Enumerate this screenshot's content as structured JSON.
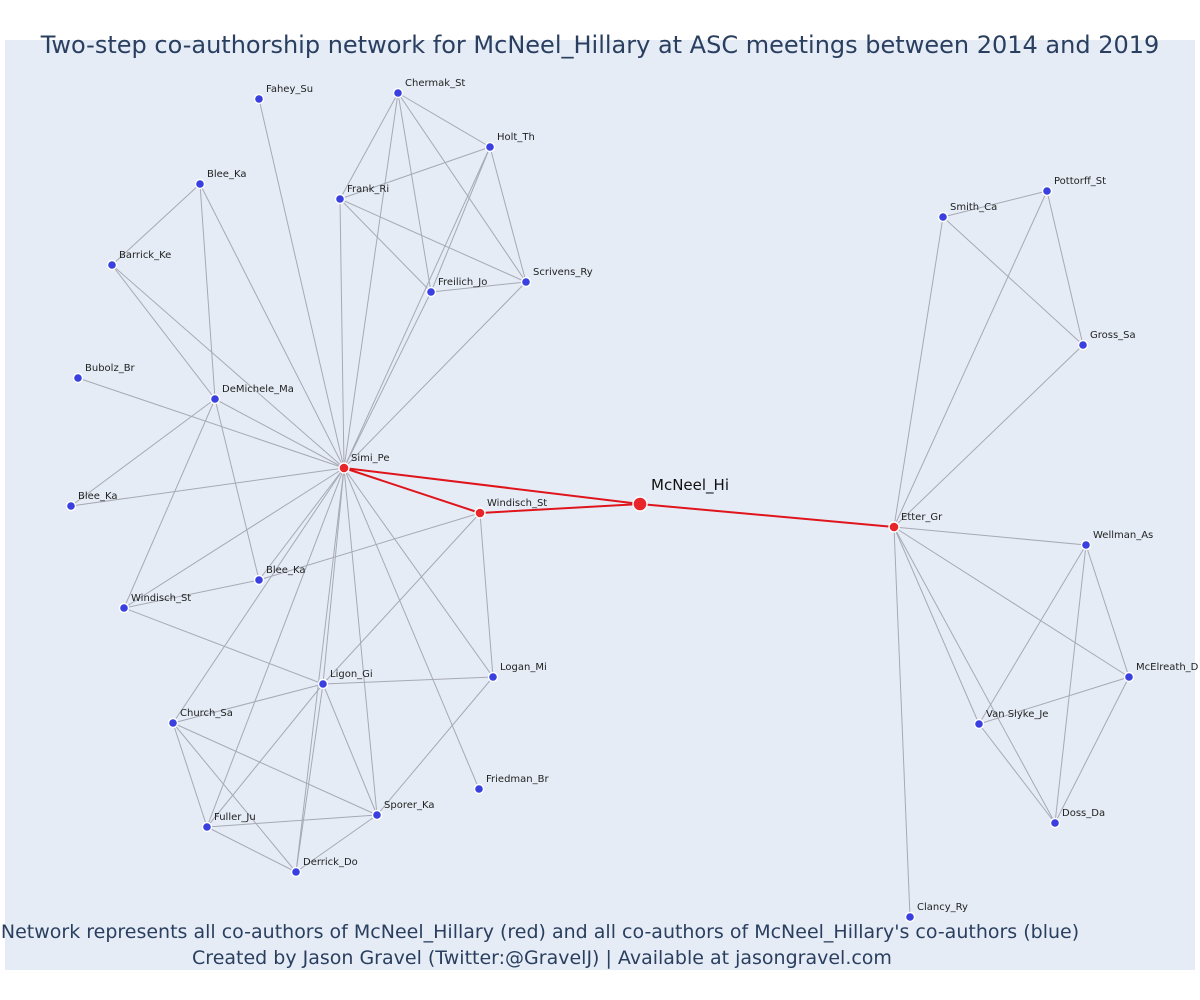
{
  "title": "Two-step co-authorship network for McNeel_Hillary at ASC meetings between 2014 and 2019",
  "caption": {
    "line1": "Network represents all co-authors of McNeel_Hillary (red) and all co-authors of McNeel_Hillary's co-authors (blue)",
    "line2": "Created by Jason Gravel (Twitter:@GravelJ) | Available at jasongravel.com"
  },
  "colors": {
    "background": "#e5ecf6",
    "edge": "#a7a9b4",
    "ego_edge": "#e0141b",
    "first_degree": "#e8262a",
    "second_degree": "#3a3fe0",
    "title": "#2a3f5f"
  },
  "nodes": [
    {
      "id": "mcneel",
      "label": "McNeel_Hi",
      "group": "focal"
    },
    {
      "id": "simi",
      "label": "Simi_Pe",
      "group": "first"
    },
    {
      "id": "windisch1",
      "label": "Windisch_St",
      "group": "first"
    },
    {
      "id": "etter",
      "label": "Etter_Gr",
      "group": "first"
    },
    {
      "id": "fahey",
      "label": "Fahey_Su",
      "group": "second"
    },
    {
      "id": "chermak",
      "label": "Chermak_St",
      "group": "second"
    },
    {
      "id": "holt",
      "label": "Holt_Th",
      "group": "second"
    },
    {
      "id": "blee1",
      "label": "Blee_Ka",
      "group": "second"
    },
    {
      "id": "frank",
      "label": "Frank_Ri",
      "group": "second"
    },
    {
      "id": "barrick",
      "label": "Barrick_Ke",
      "group": "second"
    },
    {
      "id": "freilich",
      "label": "Freilich_Jo",
      "group": "second"
    },
    {
      "id": "scrivens",
      "label": "Scrivens_Ry",
      "group": "second"
    },
    {
      "id": "bubolz",
      "label": "Bubolz_Br",
      "group": "second"
    },
    {
      "id": "demichele",
      "label": "DeMichele_Ma",
      "group": "second"
    },
    {
      "id": "blee2",
      "label": "Blee_Ka",
      "group": "second"
    },
    {
      "id": "blee3",
      "label": "Blee_Ka",
      "group": "second"
    },
    {
      "id": "windisch2",
      "label": "Windisch_St",
      "group": "second"
    },
    {
      "id": "ligon",
      "label": "Ligon_Gi",
      "group": "second"
    },
    {
      "id": "logan",
      "label": "Logan_Mi",
      "group": "second"
    },
    {
      "id": "church",
      "label": "Church_Sa",
      "group": "second"
    },
    {
      "id": "friedman",
      "label": "Friedman_Br",
      "group": "second"
    },
    {
      "id": "sporer",
      "label": "Sporer_Ka",
      "group": "second"
    },
    {
      "id": "fuller",
      "label": "Fuller_Ju",
      "group": "second"
    },
    {
      "id": "derrick",
      "label": "Derrick_Do",
      "group": "second"
    },
    {
      "id": "smith",
      "label": "Smith_Ca",
      "group": "second"
    },
    {
      "id": "pottorff",
      "label": "Pottorff_St",
      "group": "second"
    },
    {
      "id": "gross",
      "label": "Gross_Sa",
      "group": "second"
    },
    {
      "id": "wellman",
      "label": "Wellman_As",
      "group": "second"
    },
    {
      "id": "mcelreath",
      "label": "McElreath_D",
      "group": "second"
    },
    {
      "id": "vanslyke",
      "label": "Van Slyke_Je",
      "group": "second"
    },
    {
      "id": "doss",
      "label": "Doss_Da",
      "group": "second"
    },
    {
      "id": "clancy",
      "label": "Clancy_Ry",
      "group": "second"
    }
  ],
  "edges": [
    [
      "mcneel",
      "simi"
    ],
    [
      "mcneel",
      "windisch1"
    ],
    [
      "mcneel",
      "etter"
    ],
    [
      "simi",
      "windisch1"
    ],
    [
      "simi",
      "fahey"
    ],
    [
      "simi",
      "chermak"
    ],
    [
      "simi",
      "holt"
    ],
    [
      "simi",
      "frank"
    ],
    [
      "simi",
      "freilich"
    ],
    [
      "simi",
      "scrivens"
    ],
    [
      "simi",
      "blee1"
    ],
    [
      "simi",
      "barrick"
    ],
    [
      "simi",
      "bubolz"
    ],
    [
      "simi",
      "demichele"
    ],
    [
      "simi",
      "blee2"
    ],
    [
      "simi",
      "blee3"
    ],
    [
      "simi",
      "windisch2"
    ],
    [
      "simi",
      "ligon"
    ],
    [
      "simi",
      "logan"
    ],
    [
      "simi",
      "church"
    ],
    [
      "simi",
      "friedman"
    ],
    [
      "simi",
      "sporer"
    ],
    [
      "simi",
      "fuller"
    ],
    [
      "simi",
      "derrick"
    ],
    [
      "chermak",
      "holt"
    ],
    [
      "chermak",
      "frank"
    ],
    [
      "chermak",
      "freilich"
    ],
    [
      "chermak",
      "scrivens"
    ],
    [
      "holt",
      "frank"
    ],
    [
      "holt",
      "freilich"
    ],
    [
      "holt",
      "scrivens"
    ],
    [
      "frank",
      "freilich"
    ],
    [
      "frank",
      "scrivens"
    ],
    [
      "freilich",
      "scrivens"
    ],
    [
      "blee1",
      "barrick"
    ],
    [
      "blee1",
      "demichele"
    ],
    [
      "barrick",
      "demichele"
    ],
    [
      "demichele",
      "blee2"
    ],
    [
      "demichele",
      "blee3"
    ],
    [
      "demichele",
      "windisch2"
    ],
    [
      "windisch2",
      "blee3"
    ],
    [
      "windisch2",
      "ligon"
    ],
    [
      "blee3",
      "windisch1"
    ],
    [
      "windisch1",
      "ligon"
    ],
    [
      "windisch1",
      "logan"
    ],
    [
      "ligon",
      "logan"
    ],
    [
      "ligon",
      "church"
    ],
    [
      "ligon",
      "sporer"
    ],
    [
      "ligon",
      "fuller"
    ],
    [
      "ligon",
      "derrick"
    ],
    [
      "logan",
      "sporer"
    ],
    [
      "church",
      "sporer"
    ],
    [
      "church",
      "fuller"
    ],
    [
      "church",
      "derrick"
    ],
    [
      "sporer",
      "fuller"
    ],
    [
      "sporer",
      "derrick"
    ],
    [
      "fuller",
      "derrick"
    ],
    [
      "etter",
      "smith"
    ],
    [
      "etter",
      "pottorff"
    ],
    [
      "etter",
      "gross"
    ],
    [
      "etter",
      "wellman"
    ],
    [
      "etter",
      "mcelreath"
    ],
    [
      "etter",
      "vanslyke"
    ],
    [
      "etter",
      "doss"
    ],
    [
      "etter",
      "clancy"
    ],
    [
      "smith",
      "pottorff"
    ],
    [
      "smith",
      "gross"
    ],
    [
      "pottorff",
      "gross"
    ],
    [
      "wellman",
      "mcelreath"
    ],
    [
      "wellman",
      "vanslyke"
    ],
    [
      "wellman",
      "doss"
    ],
    [
      "mcelreath",
      "vanslyke"
    ],
    [
      "mcelreath",
      "doss"
    ],
    [
      "vanslyke",
      "doss"
    ]
  ]
}
